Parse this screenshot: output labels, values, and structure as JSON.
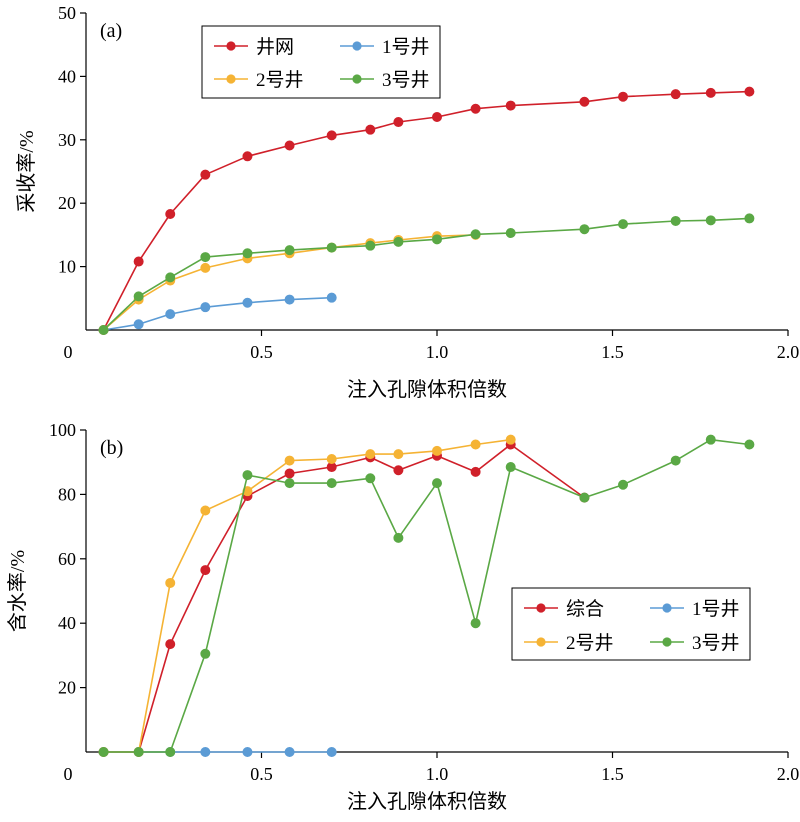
{
  "chart_data": [
    {
      "type": "line",
      "panel_label": "(a)",
      "xlabel": "注入孔隙体积倍数",
      "ylabel": "采收率/%",
      "xlim": [
        0,
        2.0
      ],
      "ylim": [
        0,
        50
      ],
      "xticks": [
        0,
        0.5,
        1.0,
        1.5,
        2.0
      ],
      "xtick_labels": [
        "0",
        "0.5",
        "1.0",
        "1.5",
        "2.0"
      ],
      "yticks": [
        10,
        20,
        30,
        40,
        50
      ],
      "ytick_labels": [
        "10",
        "20",
        "30",
        "40",
        "50"
      ],
      "grid": false,
      "legend_position": "top-center",
      "series": [
        {
          "name": "井网",
          "color": "#d0202a",
          "x": [
            0.05,
            0.15,
            0.24,
            0.34,
            0.46,
            0.58,
            0.7,
            0.81,
            0.89,
            1.0,
            1.11,
            1.21,
            1.42,
            1.53,
            1.68,
            1.78,
            1.89
          ],
          "y": [
            0,
            10.8,
            18.3,
            24.5,
            27.4,
            29.1,
            30.7,
            31.6,
            32.8,
            33.6,
            34.9,
            35.4,
            36.0,
            36.8,
            37.2,
            37.4,
            37.6
          ]
        },
        {
          "name": "1号井",
          "color": "#5b9bd5",
          "x": [
            0.05,
            0.15,
            0.24,
            0.34,
            0.46,
            0.58,
            0.7
          ],
          "y": [
            0,
            0.9,
            2.5,
            3.6,
            4.3,
            4.8,
            5.1
          ]
        },
        {
          "name": "2号井",
          "color": "#f5b334",
          "x": [
            0.05,
            0.15,
            0.24,
            0.34,
            0.46,
            0.58,
            0.7,
            0.81,
            0.89,
            1.0,
            1.11
          ],
          "y": [
            0,
            4.8,
            7.8,
            9.8,
            11.3,
            12.1,
            13.0,
            13.7,
            14.2,
            14.8,
            15.0
          ]
        },
        {
          "name": "3号井",
          "color": "#5aa845",
          "x": [
            0.05,
            0.15,
            0.24,
            0.34,
            0.46,
            0.58,
            0.7,
            0.81,
            0.89,
            1.0,
            1.11,
            1.21,
            1.42,
            1.53,
            1.68,
            1.78,
            1.89
          ],
          "y": [
            0,
            5.3,
            8.3,
            11.5,
            12.1,
            12.6,
            13.0,
            13.3,
            13.9,
            14.3,
            15.1,
            15.3,
            15.9,
            16.7,
            17.2,
            17.3,
            17.6
          ]
        }
      ]
    },
    {
      "type": "line",
      "panel_label": "(b)",
      "xlabel": "注入孔隙体积倍数",
      "ylabel": "含水率/%",
      "xlim": [
        0,
        2.0
      ],
      "ylim": [
        0,
        100
      ],
      "xticks": [
        0,
        0.5,
        1.0,
        1.5,
        2.0
      ],
      "xtick_labels": [
        "0",
        "0.5",
        "1.0",
        "1.5",
        "2.0"
      ],
      "yticks": [
        20,
        40,
        60,
        80,
        100
      ],
      "ytick_labels": [
        "20",
        "40",
        "60",
        "80",
        "100"
      ],
      "grid": false,
      "legend_position": "middle-right",
      "series": [
        {
          "name": "综合",
          "color": "#d0202a",
          "x": [
            0.05,
            0.15,
            0.24,
            0.34,
            0.46,
            0.58,
            0.7,
            0.81,
            0.89,
            1.0,
            1.11,
            1.21,
            1.42
          ],
          "y": [
            0,
            0,
            33.5,
            56.5,
            79.5,
            86.5,
            88.5,
            91.5,
            87.5,
            92.0,
            87.0,
            95.5,
            79.0
          ]
        },
        {
          "name": "1号井",
          "color": "#5b9bd5",
          "x": [
            0.05,
            0.15,
            0.24,
            0.34,
            0.46,
            0.58,
            0.7
          ],
          "y": [
            0,
            0,
            0,
            0,
            0,
            0,
            0
          ]
        },
        {
          "name": "2号井",
          "color": "#f5b334",
          "x": [
            0.05,
            0.15,
            0.24,
            0.34,
            0.46,
            0.58,
            0.7,
            0.81,
            0.89,
            1.0,
            1.11,
            1.21
          ],
          "y": [
            0,
            0,
            52.5,
            75.0,
            81.0,
            90.5,
            91.0,
            92.5,
            92.5,
            93.5,
            95.5,
            97.0
          ]
        },
        {
          "name": "3号井",
          "color": "#5aa845",
          "x": [
            0.05,
            0.15,
            0.24,
            0.34,
            0.46,
            0.58,
            0.7,
            0.81,
            0.89,
            1.0,
            1.11,
            1.21,
            1.42,
            1.53,
            1.68,
            1.78,
            1.89
          ],
          "y": [
            0,
            0,
            0,
            30.5,
            86.0,
            83.5,
            83.5,
            85.0,
            66.5,
            83.5,
            40.0,
            88.5,
            79.0,
            83.0,
            90.5,
            97.0,
            95.5
          ]
        }
      ]
    }
  ]
}
